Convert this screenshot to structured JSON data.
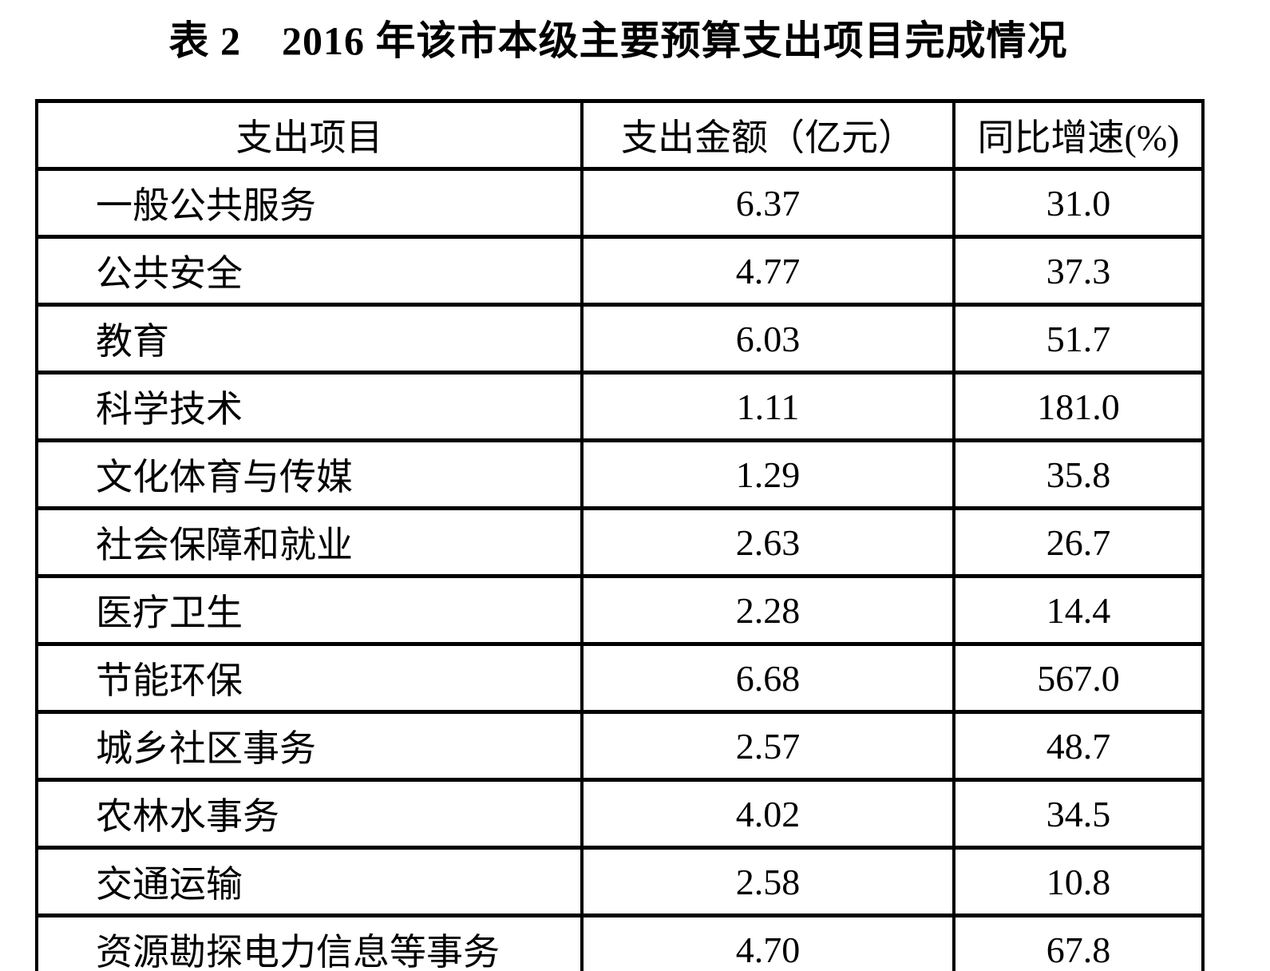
{
  "title": "表 2　2016 年该市本级主要预算支出项目完成情况",
  "table": {
    "columns": [
      "支出项目",
      "支出金额（亿元）",
      "同比增速(%)"
    ],
    "rows": [
      {
        "item": "一般公共服务",
        "amount": "6.37",
        "growth": "31.0"
      },
      {
        "item": "公共安全",
        "amount": "4.77",
        "growth": "37.3"
      },
      {
        "item": "教育",
        "amount": "6.03",
        "growth": "51.7"
      },
      {
        "item": "科学技术",
        "amount": "1.11",
        "growth": "181.0"
      },
      {
        "item": "文化体育与传媒",
        "amount": "1.29",
        "growth": "35.8"
      },
      {
        "item": "社会保障和就业",
        "amount": "2.63",
        "growth": "26.7"
      },
      {
        "item": "医疗卫生",
        "amount": "2.28",
        "growth": "14.4"
      },
      {
        "item": "节能环保",
        "amount": "6.68",
        "growth": "567.0"
      },
      {
        "item": "城乡社区事务",
        "amount": "2.57",
        "growth": "48.7"
      },
      {
        "item": "农林水事务",
        "amount": "4.02",
        "growth": "34.5"
      },
      {
        "item": "交通运输",
        "amount": "2.58",
        "growth": "10.8"
      },
      {
        "item": "资源勘探电力信息等事务",
        "amount": "4.70",
        "growth": "67.8"
      }
    ]
  },
  "colors": {
    "background": "#ffffff",
    "text": "#000000",
    "border": "#000000"
  }
}
